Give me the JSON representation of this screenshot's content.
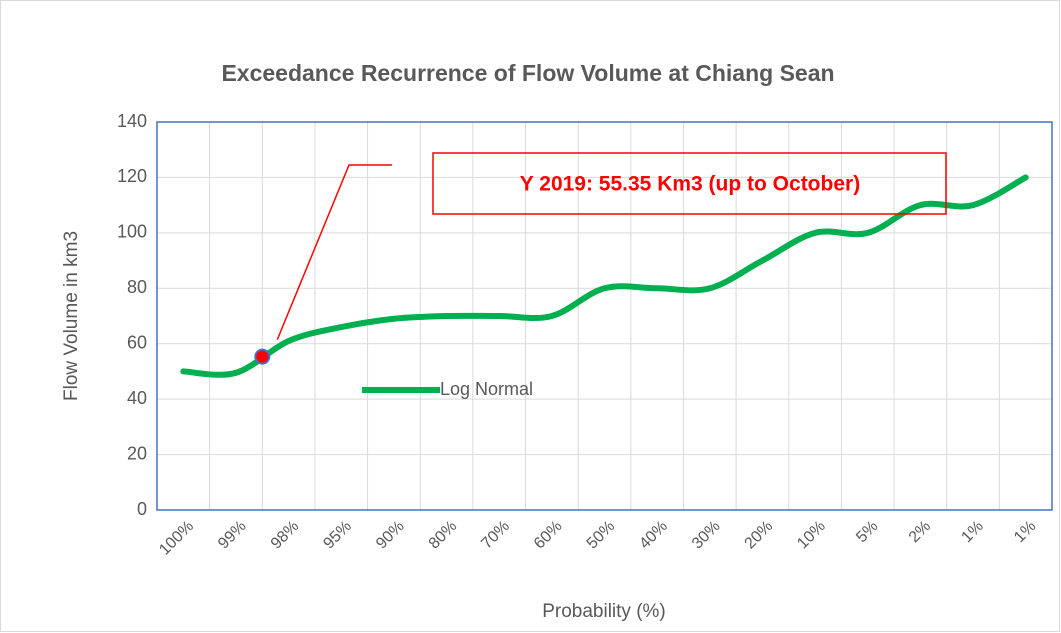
{
  "chart_data": {
    "type": "line",
    "title": "Exceedance Recurrence of Flow Volume at Chiang Sean",
    "x_label": "Probability (%)",
    "y_label": "Flow Volume in  km3",
    "categories": [
      "100%",
      "99%",
      "98%",
      "95%",
      "90%",
      "80%",
      "70%",
      "60%",
      "50%",
      "40%",
      "30%",
      "20%",
      "10%",
      "5%",
      "2%",
      "1%",
      "1%"
    ],
    "series": [
      {
        "name": "Log Normal",
        "color": "#00b050",
        "values": [
          50,
          49.5,
          61,
          66,
          69,
          70,
          70,
          70,
          80,
          80,
          80,
          90,
          100,
          100,
          110,
          110,
          120
        ]
      }
    ],
    "ylim": [
      0,
      140
    ],
    "yticks": [
      0,
      20,
      40,
      60,
      80,
      100,
      120,
      140
    ],
    "grid": true,
    "legend": "inside",
    "annotation": {
      "text": "Y 2019: 55.35 Km3 (up to October)",
      "value": 55.35,
      "color": "#ff0000"
    }
  }
}
